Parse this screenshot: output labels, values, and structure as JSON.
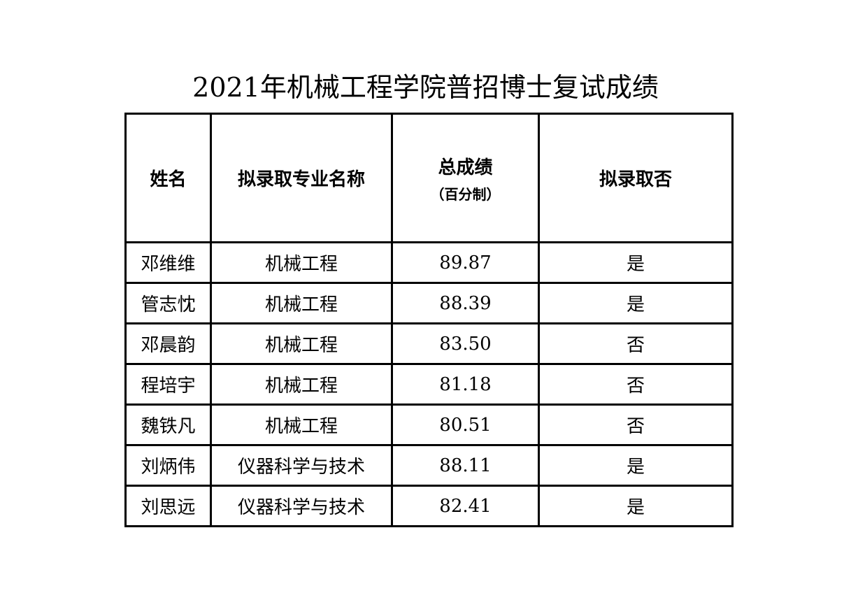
{
  "title": "2021年机械工程学院普招博士复试成绩",
  "headers": {
    "name": "姓名",
    "major": "拟录取专业名称",
    "score": "总成绩",
    "score_sub": "（百分制）",
    "admit": "拟录取否"
  },
  "rows": [
    {
      "name": "邓维维",
      "major": "机械工程",
      "score": "89.87",
      "admit": "是"
    },
    {
      "name": "管志忱",
      "major": "机械工程",
      "score": "88.39",
      "admit": "是"
    },
    {
      "name": "邓晨韵",
      "major": "机械工程",
      "score": "83.50",
      "admit": "否"
    },
    {
      "name": "程培宇",
      "major": "机械工程",
      "score": "81.18",
      "admit": "否"
    },
    {
      "name": "魏铁凡",
      "major": "机械工程",
      "score": "80.51",
      "admit": "否"
    },
    {
      "name": "刘炳伟",
      "major": "仪器科学与技术",
      "score": "88.11",
      "admit": "是"
    },
    {
      "name": "刘思远",
      "major": "仪器科学与技术",
      "score": "82.41",
      "admit": "是"
    }
  ]
}
